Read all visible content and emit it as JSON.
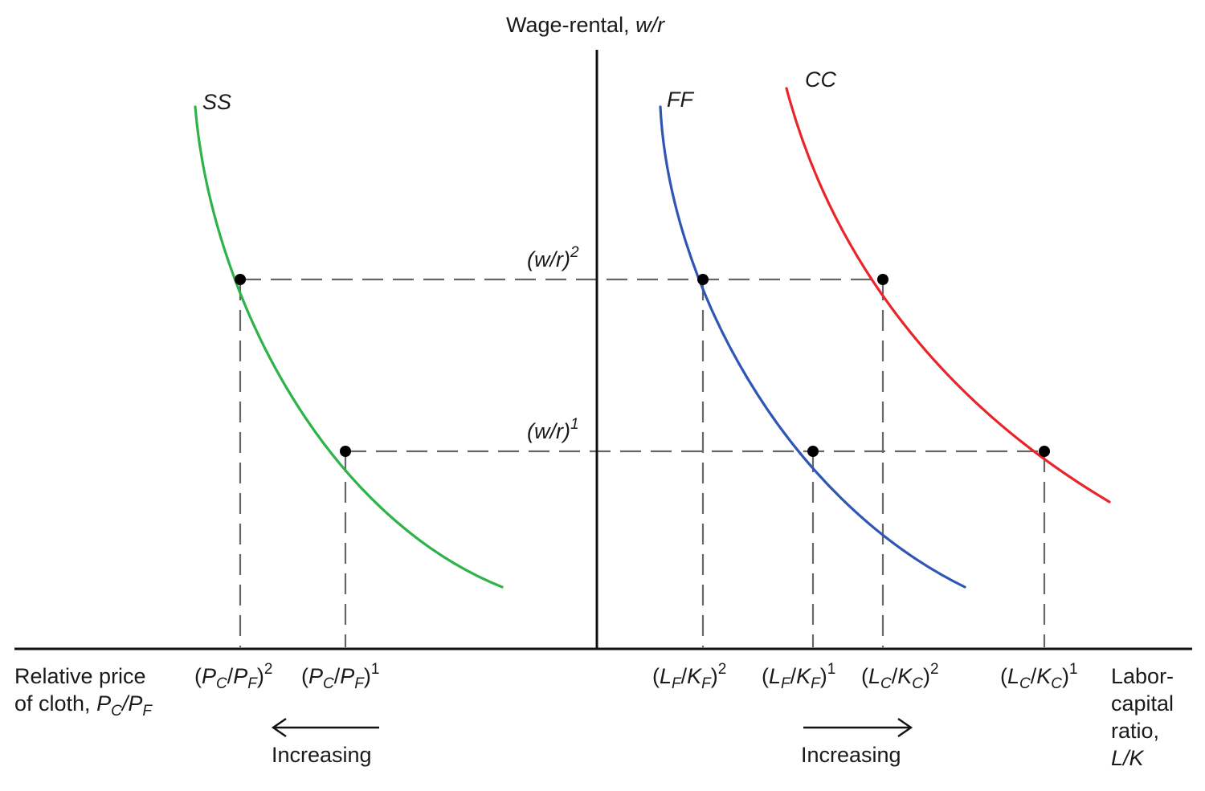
{
  "axes": {
    "vertical_title": "Wage-rental,",
    "vertical_title_var": "w/r",
    "left_title_line1": "Relative price",
    "left_title_line2": "of cloth,",
    "right_title_line1": "Labor-",
    "right_title_line2": "capital",
    "right_title_line3": "ratio,",
    "right_title_line4": "L/K"
  },
  "curves": {
    "ss": {
      "name": "SS",
      "color": "#2db34a"
    },
    "ff": {
      "name": "FF",
      "color": "#2f55b5"
    },
    "cc": {
      "name": "CC",
      "color": "#e8252b"
    }
  },
  "levels": {
    "wr2": {
      "base": "(w/r)",
      "sup": "2"
    },
    "wr1": {
      "base": "(w/r)",
      "sup": "1"
    }
  },
  "ticks": {
    "pc2": {
      "sup": "2"
    },
    "pc1": {
      "sup": "1"
    },
    "lf2": {
      "sup": "2"
    },
    "lf1": {
      "sup": "1"
    },
    "lc2": {
      "sup": "2"
    },
    "lc1": {
      "sup": "1"
    }
  },
  "arrows": {
    "left_label": "Increasing",
    "right_label": "Increasing"
  }
}
